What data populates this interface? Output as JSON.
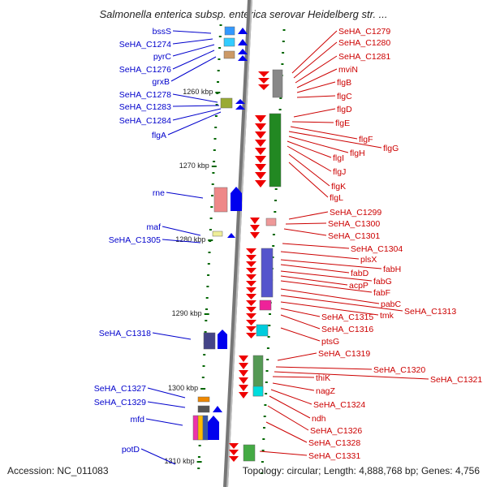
{
  "title": "Salmonella enterica subsp. enterica serovar Heidelberg str. ...",
  "footer": {
    "accession": "Accession: NC_011083",
    "summary": "Topology: circular; Length: 4,888,768 bp; Genes: 4,756"
  },
  "colors": {
    "left_label": "#0000cc",
    "right_label": "#cc0000",
    "forward_gene": "#0000ee",
    "reverse_gene": "#ee0000",
    "tick": "#006600",
    "backbone": "#777777"
  },
  "scale_labels": [
    "1260 kbp",
    "1270 kbp",
    "1280 kbp",
    "1290 kbp",
    "1300 kbp",
    "1310 kbp"
  ],
  "left_genes": [
    "bssS",
    "SeHA_C1274",
    "pyrC",
    "SeHA_C1276",
    "grxB",
    "SeHA_C1278",
    "SeHA_C1283",
    "SeHA_C1284",
    "flgA",
    "rne",
    "maf",
    "SeHA_C1305",
    "SeHA_C1318",
    "SeHA_C1327",
    "SeHA_C1329",
    "mfd",
    "potD"
  ],
  "right_genes": [
    "SeHA_C1279",
    "SeHA_C1280",
    "SeHA_C1281",
    "mviN",
    "flgB",
    "flgC",
    "flgD",
    "flgE",
    "flgF",
    "flgG",
    "flgH",
    "flgI",
    "flgJ",
    "flgK",
    "flgL",
    "SeHA_C1299",
    "SeHA_C1300",
    "SeHA_C1301",
    "SeHA_C1304",
    "plsX",
    "fabH",
    "fabD",
    "fabG",
    "acpP",
    "fabF",
    "pabC",
    "SeHA_C1313",
    "tmk",
    "SeHA_C1315",
    "SeHA_C1316",
    "ptsG",
    "SeHA_C1319",
    "SeHA_C1320",
    "SeHA_C1321",
    "thiK",
    "nagZ",
    "SeHA_C1324",
    "ndh",
    "SeHA_C1326",
    "SeHA_C1328",
    "SeHA_C1331"
  ]
}
